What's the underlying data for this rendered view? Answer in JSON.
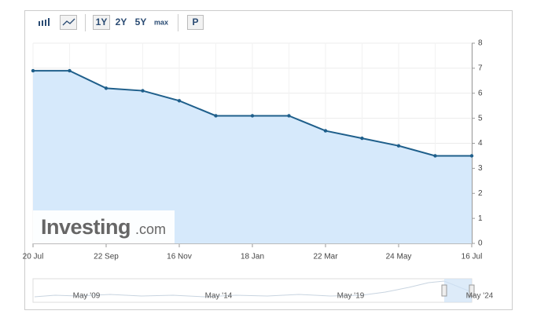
{
  "toolbar": {
    "ranges": [
      "1Y",
      "2Y",
      "5Y",
      "max"
    ],
    "p": "P"
  },
  "chart_data": {
    "type": "line",
    "categories": [
      "20 Jul",
      null,
      "22 Sep",
      null,
      "16 Nov",
      null,
      "18 Jan",
      null,
      "22 Mar",
      null,
      "24 May",
      null,
      "16 Jul"
    ],
    "values": [
      6.9,
      6.9,
      6.2,
      6.1,
      5.7,
      5.1,
      5.1,
      5.1,
      4.5,
      4.2,
      3.9,
      3.5,
      3.5
    ],
    "color": "#1f5f8b",
    "fill": "#d6e9fb",
    "ylim": [
      0,
      8
    ],
    "yticks": [
      0,
      1,
      2,
      3,
      4,
      5,
      6,
      7,
      8
    ],
    "grid": true
  },
  "logo": {
    "name": "Investing",
    "suffix": ".com"
  },
  "navigator": {
    "labels": [
      "May '09",
      "May '14",
      "May '19",
      "May '24"
    ]
  }
}
